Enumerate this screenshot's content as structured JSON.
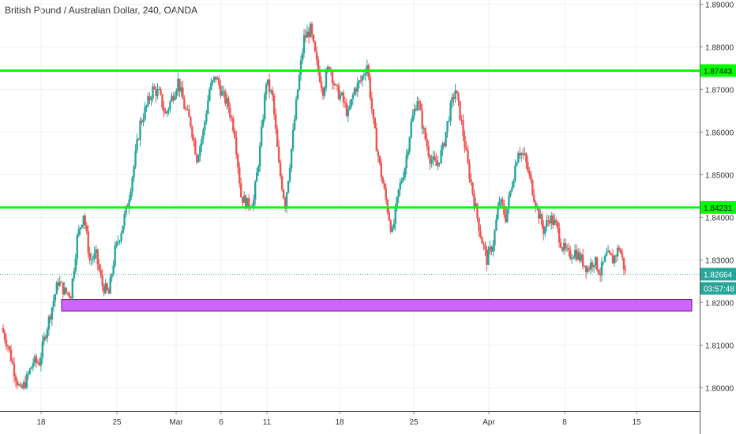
{
  "chart_data": {
    "type": "candlestick",
    "title": "British Pound / Australian Dollar, 240, OANDA",
    "y_axis": {
      "range": [
        1.7945,
        1.891
      ],
      "ticks": [
        "1.89000",
        "1.88000",
        "1.87000",
        "1.86000",
        "1.85000",
        "1.84000",
        "1.83000",
        "1.82000",
        "1.81000",
        "1.80000"
      ],
      "tick_values": [
        1.89,
        1.88,
        1.87,
        1.86,
        1.85,
        1.84,
        1.83,
        1.82,
        1.81,
        1.8
      ],
      "position": "right"
    },
    "x_axis": {
      "ticks": [
        "18",
        "25",
        "Mar",
        "6",
        "11",
        "18",
        "25",
        "Apr",
        "8",
        "15"
      ]
    },
    "grid": true,
    "horizontal_levels": [
      {
        "label": "1.87443",
        "value": 1.87443,
        "color": "#00ff00"
      },
      {
        "label": "1.84231",
        "value": 1.84231,
        "color": "#00ff00"
      }
    ],
    "zone": {
      "low": 1.818,
      "high": 1.8207,
      "color": "#cc66ff",
      "border": "#5a1f7a"
    },
    "last_price": {
      "label": "1.82664",
      "value": 1.82664,
      "color": "#26a69a"
    },
    "countdown": {
      "label": "03:57:48",
      "color": "#26a69a"
    },
    "close_path": [
      1.814,
      1.81,
      1.804,
      1.799,
      1.802,
      1.806,
      1.806,
      1.813,
      1.819,
      1.825,
      1.8225,
      1.822,
      1.835,
      1.841,
      1.83,
      1.831,
      1.824,
      1.822,
      1.832,
      1.837,
      1.843,
      1.852,
      1.862,
      1.866,
      1.87,
      1.869,
      1.864,
      1.868,
      1.872,
      1.866,
      1.862,
      1.854,
      1.86,
      1.87,
      1.873,
      1.869,
      1.866,
      1.86,
      1.845,
      1.843,
      1.844,
      1.856,
      1.872,
      1.868,
      1.852,
      1.843,
      1.856,
      1.87,
      1.882,
      1.884,
      1.876,
      1.87,
      1.876,
      1.87,
      1.868,
      1.864,
      1.87,
      1.872,
      1.876,
      1.862,
      1.852,
      1.844,
      1.836,
      1.846,
      1.852,
      1.862,
      1.868,
      1.86,
      1.854,
      1.852,
      1.856,
      1.864,
      1.87,
      1.862,
      1.852,
      1.844,
      1.836,
      1.83,
      1.834,
      1.844,
      1.84,
      1.848,
      1.856,
      1.854,
      1.848,
      1.842,
      1.837,
      1.84,
      1.838,
      1.833,
      1.831,
      1.832,
      1.83,
      1.828,
      1.83,
      1.827,
      1.831,
      1.83,
      1.833,
      1.827
    ]
  }
}
